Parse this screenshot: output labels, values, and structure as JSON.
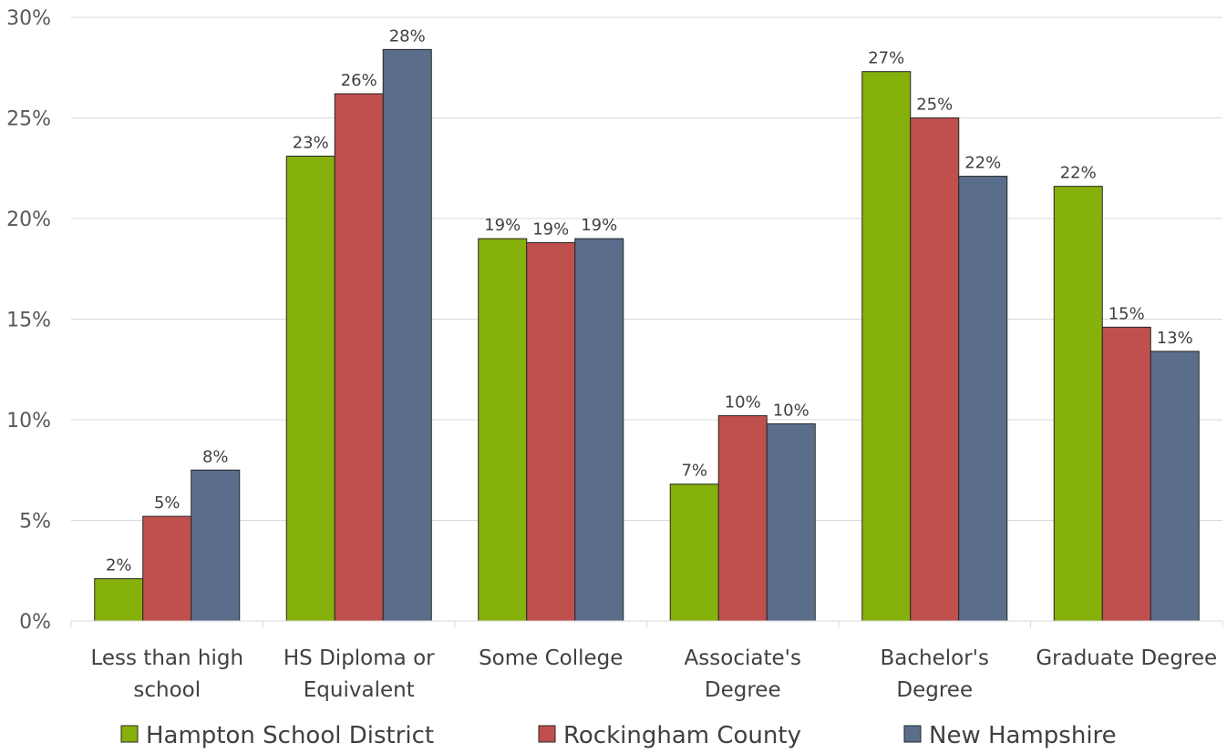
{
  "chart_data": {
    "type": "bar",
    "title": "",
    "xlabel": "",
    "ylabel": "",
    "ylim": [
      0,
      30
    ],
    "yticks": [
      "0%",
      "5%",
      "10%",
      "15%",
      "20%",
      "25%",
      "30%"
    ],
    "ytick_values": [
      0,
      5,
      10,
      15,
      20,
      25,
      30
    ],
    "grid": true,
    "legend_position": "bottom",
    "categories": [
      [
        "Less than high",
        "school"
      ],
      [
        "HS Diploma or",
        "Equivalent"
      ],
      [
        "Some College"
      ],
      [
        "Associate's",
        "Degree"
      ],
      [
        "Bachelor's",
        "Degree"
      ],
      [
        "Graduate Degree"
      ]
    ],
    "series": [
      {
        "name": "Hampton School District",
        "color": "#86b00a",
        "values": [
          2.1,
          23.1,
          19.0,
          6.8,
          27.3,
          21.6
        ],
        "labels": [
          "2%",
          "23%",
          "19%",
          "7%",
          "27%",
          "22%"
        ]
      },
      {
        "name": "Rockingham County",
        "color": "#c0504d",
        "values": [
          5.2,
          26.2,
          18.8,
          10.2,
          25.0,
          14.6
        ],
        "labels": [
          "5%",
          "26%",
          "19%",
          "10%",
          "25%",
          "15%"
        ]
      },
      {
        "name": "New Hampshire",
        "color": "#5a6e8c",
        "values": [
          7.5,
          28.4,
          19.0,
          9.8,
          22.1,
          13.4
        ],
        "labels": [
          "8%",
          "28%",
          "19%",
          "10%",
          "22%",
          "13%"
        ]
      }
    ]
  }
}
